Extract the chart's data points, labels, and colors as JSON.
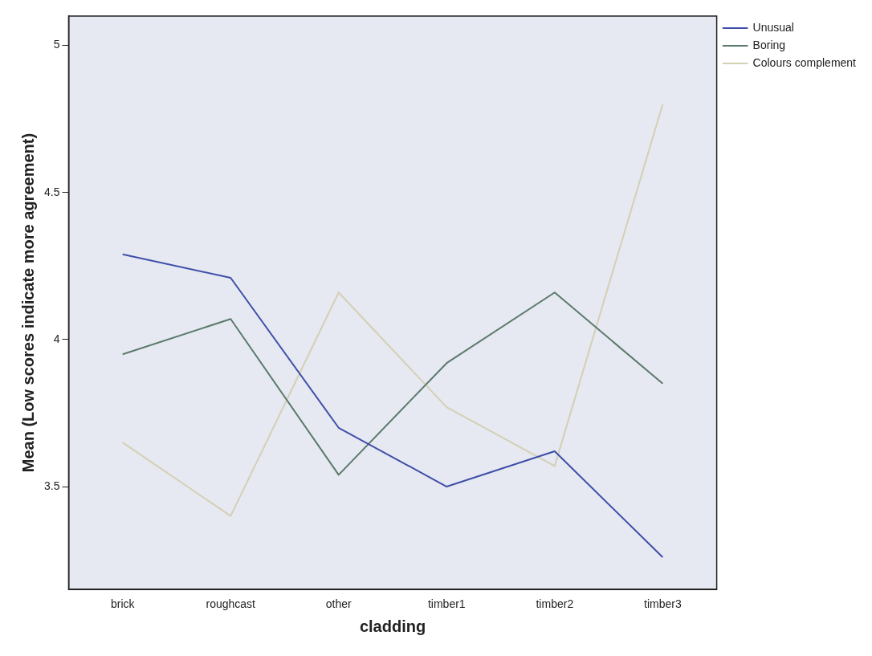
{
  "chart_data": {
    "type": "line",
    "xlabel": "cladding",
    "ylabel": "Mean (Low scores indicate more agreement)",
    "categories": [
      "brick",
      "roughcast",
      "other",
      "timber1",
      "timber2",
      "timber3"
    ],
    "series": [
      {
        "name": "Unusual",
        "color": "#3f4fa8",
        "values": [
          4.29,
          4.21,
          3.7,
          3.5,
          3.62,
          3.26
        ]
      },
      {
        "name": "Boring",
        "color": "#5a7a6a",
        "values": [
          3.95,
          4.07,
          3.54,
          3.92,
          4.16,
          3.85
        ]
      },
      {
        "name": "Colours complement",
        "color": "#d4d0b4",
        "values": [
          3.65,
          3.4,
          4.16,
          3.77,
          3.57,
          4.8
        ]
      }
    ],
    "ylim": [
      3.15,
      5.1
    ],
    "yticks": [
      3.5,
      4,
      4.5,
      5
    ],
    "grid": false,
    "legend": "top right",
    "marker": "none",
    "line_style": "solid"
  }
}
